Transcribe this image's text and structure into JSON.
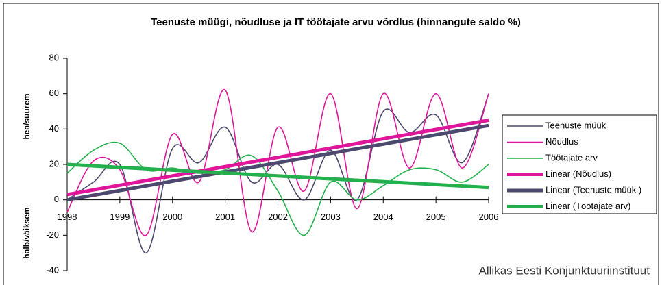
{
  "chart_data": {
    "type": "line",
    "title": "Teenuste müügi, nõudluse ja IT töötajate arvu võrdlus (hinnangute saldo %)",
    "y_label_top": "hea/suurem",
    "y_label_bottom": "halb/väiksem",
    "source": "Allikas Eesti Konjunktuuriinstituut",
    "xlim": [
      1998,
      2006
    ],
    "xticks": [
      1998,
      1999,
      2000,
      2001,
      2002,
      2003,
      2004,
      2005,
      2006
    ],
    "ylim": [
      -40,
      80
    ],
    "yticks": [
      -40,
      -20,
      0,
      20,
      40,
      60,
      80
    ],
    "legend": "right",
    "series": [
      {
        "name": "Teenuste müük",
        "color": "#4b4a6e",
        "smooth": true,
        "width": 1.6,
        "x": [
          1998,
          1998.5,
          1999,
          1999.5,
          2000,
          2000.5,
          2001,
          2001.5,
          2002,
          2002.5,
          2003,
          2003.5,
          2004,
          2004.5,
          2005,
          2005.5,
          2006
        ],
        "values": [
          0,
          10,
          20,
          -30,
          29,
          21,
          41,
          10,
          20,
          0,
          28,
          0,
          50,
          38,
          48,
          21,
          60
        ]
      },
      {
        "name": "Nõudlus",
        "color": "#e0169a",
        "smooth": true,
        "width": 1.6,
        "x": [
          1998,
          1998.5,
          1999,
          1999.5,
          2000,
          2000.5,
          2001,
          2001.5,
          2002,
          2002.5,
          2003,
          2003.5,
          2004,
          2004.5,
          2005,
          2005.5,
          2006
        ],
        "values": [
          -7,
          22,
          17,
          -20,
          37,
          10,
          62,
          -18,
          41,
          5,
          60,
          -5,
          60,
          18,
          60,
          18,
          60
        ]
      },
      {
        "name": "Töötajate arv",
        "color": "#22b14c",
        "smooth": true,
        "width": 1.6,
        "x": [
          1998,
          1998.5,
          1999,
          1999.5,
          2000,
          2000.5,
          2001,
          2001.5,
          2002,
          2002.5,
          2003,
          2003.5,
          2004,
          2004.5,
          2005,
          2005.5,
          2006
        ],
        "values": [
          15,
          28,
          32,
          17,
          18,
          15,
          17,
          25,
          5,
          -20,
          10,
          0,
          8,
          17,
          17,
          10,
          20
        ]
      },
      {
        "name": "Linear (Nõudlus)",
        "color": "#e0169a",
        "smooth": false,
        "width": 5,
        "x": [
          1998,
          2006
        ],
        "values": [
          3,
          45
        ]
      },
      {
        "name": "Linear (Teenuste müük )",
        "color": "#4b4a6e",
        "smooth": false,
        "width": 5,
        "x": [
          1998,
          2006
        ],
        "values": [
          0,
          42
        ]
      },
      {
        "name": "Linear (Töötajate arv)",
        "color": "#22b14c",
        "smooth": false,
        "width": 5,
        "x": [
          1998,
          2006
        ],
        "values": [
          20,
          7
        ]
      }
    ]
  }
}
